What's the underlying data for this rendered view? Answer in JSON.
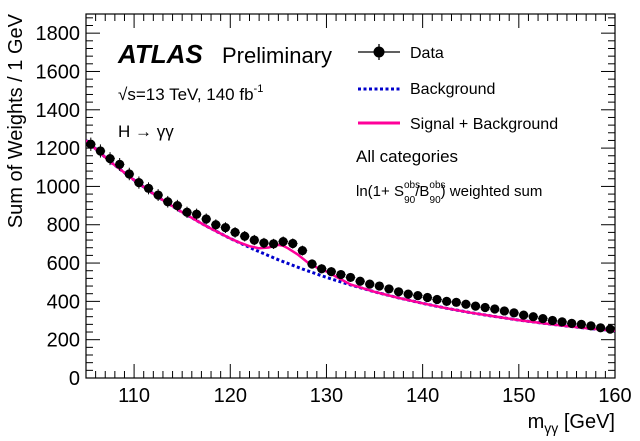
{
  "chart_data": {
    "type": "scatter",
    "title": "",
    "experiment": "ATLAS",
    "status": "Preliminary",
    "energy_lumi": {
      "sqrt": "√",
      "s_eq": "s=13 TeV, 140 fb",
      "lumi_exp": "-1"
    },
    "process": "H → γγ",
    "category": "All categories",
    "weighting": {
      "prefix": "ln(1+ S",
      "s_sup": "obs",
      "s_sub": "90",
      "slash": "/B",
      "b_sup": "obs",
      "b_sub": "90",
      "suffix": ") weighted sum"
    },
    "xlabel": {
      "main": "m",
      "sub": "γγ",
      "unit": " [GeV]"
    },
    "ylabel": "Sum of Weights / 1 GeV",
    "xlim": [
      105,
      160
    ],
    "ylim": [
      0,
      1900
    ],
    "xticks": [
      110,
      120,
      130,
      140,
      150,
      160
    ],
    "yticks": [
      0,
      200,
      400,
      600,
      800,
      1000,
      1200,
      1400,
      1600,
      1800
    ],
    "legend": {
      "placement": "top-right",
      "data": "Data",
      "background": "Background",
      "signal_background": "Signal + Background"
    },
    "colors": {
      "data": "#000000",
      "background": "#0000cc",
      "signal_background": "#ff0099"
    },
    "series": [
      {
        "name": "Data",
        "x": [
          105.5,
          106.5,
          107.5,
          108.5,
          109.5,
          110.5,
          111.5,
          112.5,
          113.5,
          114.5,
          115.5,
          116.5,
          117.5,
          118.5,
          119.5,
          120.5,
          121.5,
          122.5,
          123.5,
          124.5,
          125.5,
          126.5,
          127.5,
          128.5,
          129.5,
          130.5,
          131.5,
          132.5,
          133.5,
          134.5,
          135.5,
          136.5,
          137.5,
          138.5,
          139.5,
          140.5,
          141.5,
          142.5,
          143.5,
          144.5,
          145.5,
          146.5,
          147.5,
          148.5,
          149.5,
          150.5,
          151.5,
          152.5,
          153.5,
          154.5,
          155.5,
          156.5,
          157.5,
          158.5,
          159.5
        ],
        "y": [
          1220,
          1185,
          1145,
          1115,
          1065,
          1020,
          990,
          955,
          920,
          900,
          865,
          855,
          830,
          800,
          785,
          760,
          740,
          720,
          705,
          700,
          712,
          702,
          665,
          595,
          570,
          555,
          540,
          525,
          505,
          490,
          480,
          465,
          450,
          438,
          430,
          420,
          410,
          400,
          395,
          385,
          375,
          368,
          360,
          350,
          340,
          328,
          320,
          310,
          300,
          293,
          285,
          280,
          272,
          262,
          255
        ]
      },
      {
        "name": "Background",
        "x": [
          105,
          107.5,
          110,
          112.5,
          115,
          117.5,
          120,
          122.5,
          125,
          127.5,
          130,
          132.5,
          135,
          137.5,
          140,
          142.5,
          145,
          147.5,
          150,
          152.5,
          155,
          157.5,
          160
        ],
        "y": [
          1240,
          1130,
          1033,
          944,
          865,
          793,
          728,
          670,
          617,
          569,
          525,
          486,
          450,
          418,
          390,
          364,
          341,
          321,
          302,
          286,
          271,
          258,
          247
        ]
      },
      {
        "name": "Signal + Background",
        "x": [
          105,
          107.5,
          110,
          112.5,
          115,
          117.5,
          120,
          121,
          122,
          123,
          124,
          124.5,
          125,
          125.5,
          126,
          127,
          128,
          129,
          130,
          132.5,
          135,
          137.5,
          140,
          142.5,
          145,
          147.5,
          150,
          152.5,
          155,
          157.5,
          160
        ],
        "y": [
          1240,
          1130,
          1033,
          944,
          865,
          793,
          728,
          706,
          688,
          677,
          681,
          688,
          695,
          690,
          677,
          645,
          605,
          577,
          556,
          488,
          450,
          418,
          390,
          364,
          341,
          321,
          302,
          286,
          271,
          258,
          247
        ]
      }
    ]
  }
}
